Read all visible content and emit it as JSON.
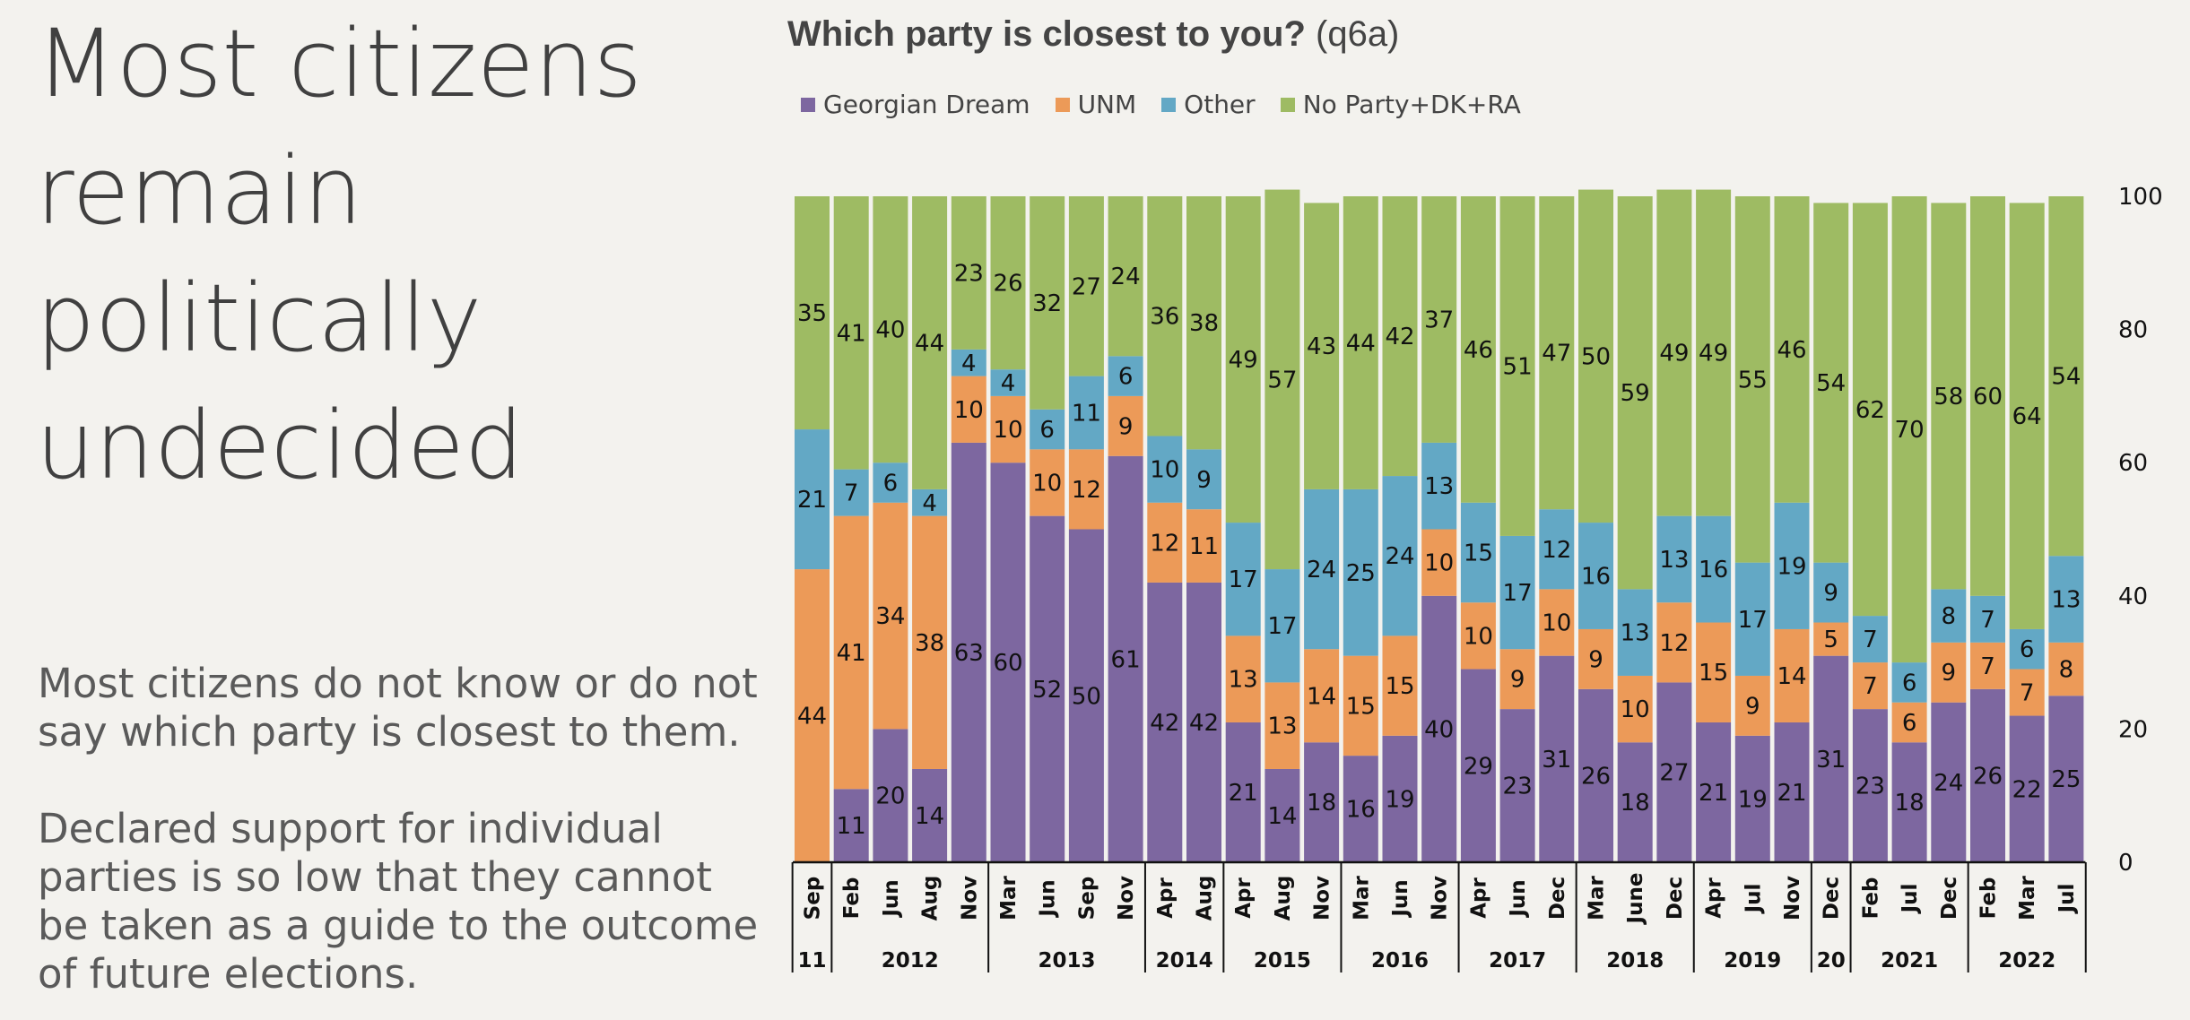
{
  "headline": [
    "Most citizens",
    "remain",
    "politically",
    "undecided"
  ],
  "paragraph1": [
    "Most citizens do not know or do not",
    "say which party is closest to them."
  ],
  "paragraph2": [
    "Declared support for individual",
    "parties is so low that they cannot",
    "be taken as a guide to the outcome",
    "of future elections."
  ],
  "chart_data": {
    "type": "bar",
    "stacked": true,
    "title_bold": "Which party is closest to you?",
    "title_code": "(q6a)",
    "legend_position": "top-left",
    "ylim": [
      0,
      100
    ],
    "yticks": [
      0,
      20,
      40,
      60,
      80,
      100
    ],
    "y_axis_side": "right",
    "grid": false,
    "categories": [
      "Sep",
      "Feb",
      "Jun",
      "Aug",
      "Nov",
      "Mar",
      "Jun",
      "Sep",
      "Nov",
      "Apr",
      "Aug",
      "Apr",
      "Aug",
      "Nov",
      "Mar",
      "Jun",
      "Nov",
      "Apr",
      "Jun",
      "Dec",
      "Mar",
      "June",
      "Dec",
      "Apr",
      "Jul",
      "Nov",
      "Dec",
      "Feb",
      "Jul",
      "Dec",
      "Feb",
      "Mar",
      "Jul"
    ],
    "year_groups": [
      {
        "label": "11",
        "count": 1
      },
      {
        "label": "2012",
        "count": 4
      },
      {
        "label": "2013",
        "count": 4
      },
      {
        "label": "2014",
        "count": 2
      },
      {
        "label": "2015",
        "count": 3
      },
      {
        "label": "2016",
        "count": 3
      },
      {
        "label": "2017",
        "count": 3
      },
      {
        "label": "2018",
        "count": 3
      },
      {
        "label": "2019",
        "count": 3
      },
      {
        "label": "20",
        "count": 1
      },
      {
        "label": "2021",
        "count": 3
      },
      {
        "label": "2022",
        "count": 3
      }
    ],
    "series": [
      {
        "name": "Georgian Dream",
        "color": "#7d67a0",
        "values": [
          null,
          11,
          20,
          14,
          63,
          60,
          52,
          50,
          61,
          42,
          42,
          21,
          14,
          18,
          16,
          19,
          40,
          29,
          23,
          31,
          26,
          18,
          27,
          21,
          19,
          21,
          31,
          23,
          18,
          24,
          26,
          22,
          25
        ]
      },
      {
        "name": "UNM",
        "color": "#ec9a58",
        "values": [
          44,
          41,
          34,
          38,
          10,
          10,
          10,
          12,
          9,
          12,
          11,
          13,
          13,
          14,
          15,
          15,
          10,
          10,
          9,
          10,
          9,
          10,
          12,
          15,
          9,
          14,
          5,
          7,
          6,
          9,
          7,
          7,
          8
        ]
      },
      {
        "name": "Other",
        "color": "#63a8c5",
        "values": [
          21,
          7,
          6,
          4,
          4,
          4,
          6,
          11,
          6,
          10,
          9,
          17,
          17,
          24,
          25,
          24,
          13,
          15,
          17,
          12,
          16,
          13,
          13,
          16,
          17,
          19,
          9,
          7,
          6,
          8,
          7,
          6,
          13
        ]
      },
      {
        "name": "No Party+DK+RA",
        "color": "#9ebb63",
        "values": [
          35,
          41,
          40,
          44,
          23,
          26,
          32,
          27,
          24,
          36,
          38,
          49,
          57,
          43,
          44,
          42,
          37,
          46,
          51,
          47,
          50,
          59,
          49,
          49,
          55,
          46,
          54,
          62,
          70,
          58,
          60,
          64,
          54
        ]
      }
    ]
  }
}
